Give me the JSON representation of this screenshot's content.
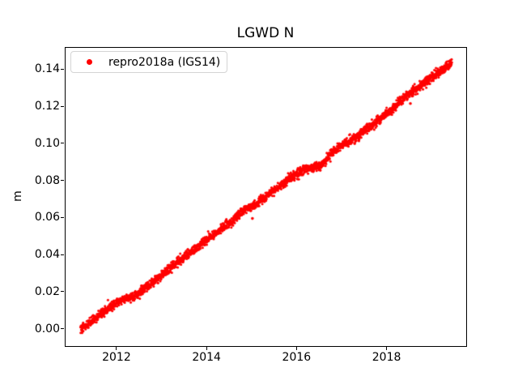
{
  "figure": {
    "background": "#ffffff",
    "text_color": "#000000"
  },
  "chart_data": {
    "type": "scatter",
    "title": "LGWD N",
    "xlabel": "",
    "ylabel": "m",
    "grid": false,
    "xlim": [
      2010.85,
      2019.77
    ],
    "ylim": [
      -0.0093,
      0.152
    ],
    "xticks": {
      "values": [
        2012,
        2014,
        2016,
        2018
      ],
      "labels": [
        "2012",
        "2014",
        "2016",
        "2018"
      ]
    },
    "yticks": {
      "values": [
        0.0,
        0.02,
        0.04,
        0.06,
        0.08,
        0.1,
        0.12,
        0.14
      ],
      "labels": [
        "0.00",
        "0.02",
        "0.04",
        "0.06",
        "0.08",
        "0.10",
        "0.12",
        "0.14"
      ]
    },
    "legend": {
      "position": "upper-left",
      "border_color": "#d4d4d4"
    },
    "series": [
      {
        "name": "repro2018a (IGS14)",
        "color": "#ff0000",
        "marker": "dot",
        "marker_radius_px": 1.5,
        "x_start": 2011.2,
        "x_end": 2019.45,
        "n_points": 2600,
        "noise_sd_m": 0.0012,
        "trend_rate_m_per_yr": 0.0174,
        "trend_anchors": [
          [
            2011.2,
            0.0
          ],
          [
            2011.33,
            0.0018
          ],
          [
            2011.5,
            0.0052
          ],
          [
            2011.7,
            0.0088
          ],
          [
            2011.9,
            0.0124
          ],
          [
            2012.05,
            0.0148
          ],
          [
            2012.18,
            0.0163
          ],
          [
            2012.38,
            0.0174
          ],
          [
            2012.6,
            0.0212
          ],
          [
            2012.85,
            0.0258
          ],
          [
            2013.1,
            0.0309
          ],
          [
            2013.35,
            0.0359
          ],
          [
            2013.6,
            0.0404
          ],
          [
            2013.85,
            0.0449
          ],
          [
            2014.1,
            0.0497
          ],
          [
            2014.35,
            0.0544
          ],
          [
            2014.6,
            0.0588
          ],
          [
            2014.81,
            0.0637
          ],
          [
            2015.02,
            0.0663
          ],
          [
            2015.25,
            0.0702
          ],
          [
            2015.5,
            0.0745
          ],
          [
            2015.7,
            0.0782
          ],
          [
            2015.95,
            0.0831
          ],
          [
            2016.2,
            0.0861
          ],
          [
            2016.35,
            0.0869
          ],
          [
            2016.55,
            0.0878
          ],
          [
            2016.75,
            0.0944
          ],
          [
            2017.0,
            0.099
          ],
          [
            2017.15,
            0.101
          ],
          [
            2017.3,
            0.1028
          ],
          [
            2017.5,
            0.107
          ],
          [
            2017.7,
            0.1102
          ],
          [
            2017.9,
            0.1142
          ],
          [
            2018.1,
            0.1175
          ],
          [
            2018.3,
            0.1228
          ],
          [
            2018.5,
            0.127
          ],
          [
            2018.7,
            0.1302
          ],
          [
            2018.9,
            0.1338
          ],
          [
            2019.1,
            0.1372
          ],
          [
            2019.25,
            0.14
          ],
          [
            2019.38,
            0.1424
          ],
          [
            2019.45,
            0.1438
          ]
        ],
        "outliers": [
          [
            2015.02,
            0.0595
          ],
          [
            2018.53,
            0.1215
          ]
        ]
      }
    ]
  }
}
